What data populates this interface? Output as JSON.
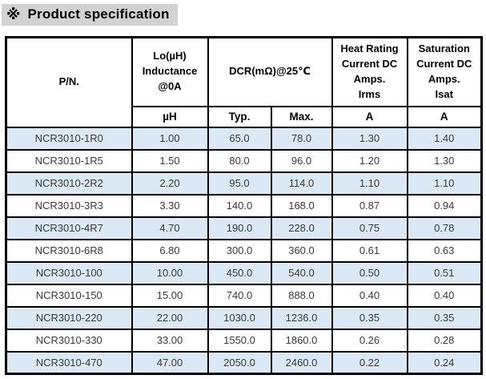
{
  "title": {
    "marker": "※",
    "text": "Product specification"
  },
  "colors": {
    "title_highlight": "#d2d2d2",
    "row_alt_blue": "#dbe8f5",
    "border": "#000000",
    "data_text": "#3a3a3a"
  },
  "table": {
    "header": {
      "pn": "P/N.",
      "inductance": "Lo(µH)\nInductance\n@0A",
      "dcr": "DCR(mΩ)@25℃",
      "heat_rating": "Heat Rating\nCurrent DC\nAmps.\nIrms",
      "saturation": "Saturation\nCurrent DC\nAmps.\nIsat",
      "sub_inductance_unit": "µH",
      "sub_dcr_typ": "Typ.",
      "sub_dcr_max": "Max.",
      "sub_irms_unit": "A",
      "sub_isat_unit": "A"
    },
    "rows": [
      {
        "pn": "NCR3010-1R0",
        "l": "1.00",
        "typ": "65.0",
        "max": "78.0",
        "irms": "1.30",
        "isat": "1.40"
      },
      {
        "pn": "NCR3010-1R5",
        "l": "1.50",
        "typ": "80.0",
        "max": "96.0",
        "irms": "1.20",
        "isat": "1.30"
      },
      {
        "pn": "NCR3010-2R2",
        "l": "2.20",
        "typ": "95.0",
        "max": "114.0",
        "irms": "1.10",
        "isat": "1.10"
      },
      {
        "pn": "NCR3010-3R3",
        "l": "3.30",
        "typ": "140.0",
        "max": "168.0",
        "irms": "0.87",
        "isat": "0.94"
      },
      {
        "pn": "NCR3010-4R7",
        "l": "4.70",
        "typ": "190.0",
        "max": "228.0",
        "irms": "0.75",
        "isat": "0.78"
      },
      {
        "pn": "NCR3010-6R8",
        "l": "6.80",
        "typ": "300.0",
        "max": "360.0",
        "irms": "0.61",
        "isat": "0.63"
      },
      {
        "pn": "NCR3010-100",
        "l": "10.00",
        "typ": "450.0",
        "max": "540.0",
        "irms": "0.50",
        "isat": "0.51"
      },
      {
        "pn": "NCR3010-150",
        "l": "15.00",
        "typ": "740.0",
        "max": "888.0",
        "irms": "0.40",
        "isat": "0.40"
      },
      {
        "pn": "NCR3010-220",
        "l": "22.00",
        "typ": "1030.0",
        "max": "1236.0",
        "irms": "0.35",
        "isat": "0.35"
      },
      {
        "pn": "NCR3010-330",
        "l": "33.00",
        "typ": "1550.0",
        "max": "1860.0",
        "irms": "0.26",
        "isat": "0.28"
      },
      {
        "pn": "NCR3010-470",
        "l": "47.00",
        "typ": "2050.0",
        "max": "2460.0",
        "irms": "0.22",
        "isat": "0.24"
      }
    ]
  }
}
